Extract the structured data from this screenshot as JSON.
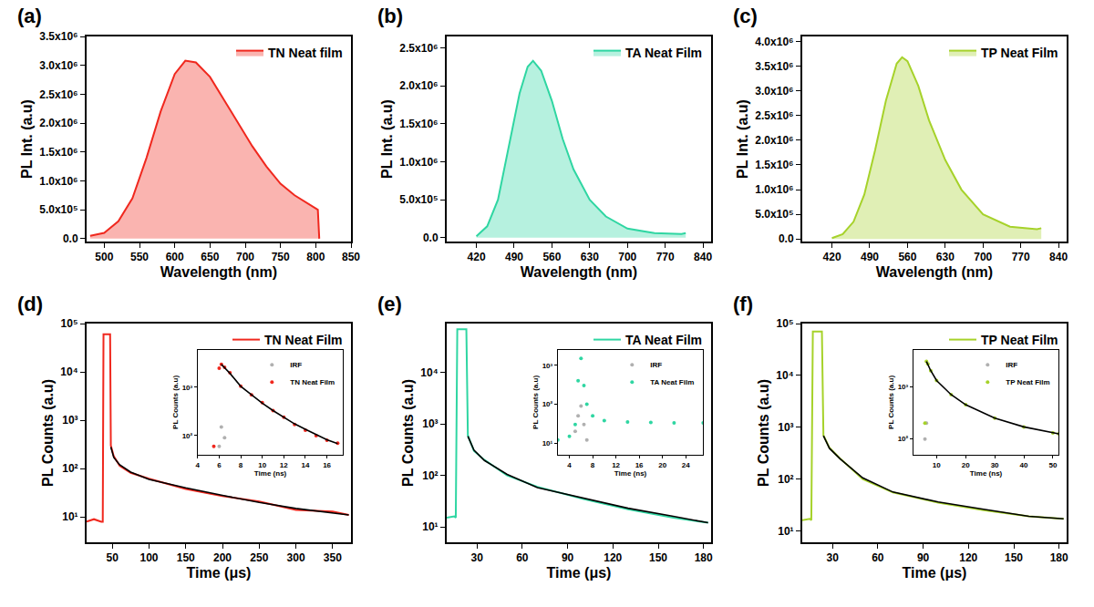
{
  "chart_data": [
    {
      "type": "area",
      "title": "(a)",
      "xlabel": "Wavelength (nm)",
      "ylabel": "PL Int. (a.u)",
      "x": [
        480,
        500,
        520,
        540,
        560,
        580,
        600,
        615,
        630,
        650,
        670,
        690,
        710,
        730,
        750,
        770,
        790,
        803,
        805
      ],
      "series": [
        {
          "name": "TN Neat film",
          "color": "#f0281e",
          "values": [
            50000,
            100000,
            300000,
            700000,
            1400000,
            2200000,
            2850000,
            3080000,
            3050000,
            2800000,
            2400000,
            2000000,
            1600000,
            1250000,
            950000,
            750000,
            600000,
            500000,
            0
          ]
        }
      ],
      "xlim": [
        475,
        850
      ],
      "xticks": [
        500,
        550,
        600,
        650,
        700,
        750,
        800,
        850
      ],
      "ylim": [
        -50000,
        3500000
      ],
      "yticks": [
        {
          "value": 0,
          "label": "0.0"
        },
        {
          "value": 500000,
          "label": "5.0x10⁵"
        },
        {
          "value": 1000000,
          "label": "1.0x10⁶"
        },
        {
          "value": 1500000,
          "label": "1.5x10⁶"
        },
        {
          "value": 2000000,
          "label": "2.0x10⁶"
        },
        {
          "value": 2500000,
          "label": "2.5x10⁶"
        },
        {
          "value": 3000000,
          "label": "3.0x10⁶"
        },
        {
          "value": 3500000,
          "label": "3.5x10⁶"
        }
      ],
      "grid": false,
      "legend": "top right"
    },
    {
      "type": "area",
      "title": "(b)",
      "xlabel": "Wavelength (nm)",
      "ylabel": "PL Int. (a.u)",
      "x": [
        420,
        440,
        460,
        480,
        500,
        515,
        525,
        540,
        560,
        580,
        600,
        630,
        660,
        700,
        750,
        800,
        808
      ],
      "series": [
        {
          "name": "TA Neat Film",
          "color": "#2fd6a2",
          "values": [
            20000,
            150000,
            500000,
            1200000,
            1900000,
            2250000,
            2330000,
            2200000,
            1800000,
            1300000,
            900000,
            500000,
            280000,
            120000,
            60000,
            50000,
            60000
          ]
        }
      ],
      "xlim": [
        365,
        855
      ],
      "xticks": [
        420,
        490,
        560,
        630,
        700,
        770,
        840
      ],
      "ylim": [
        -50000,
        2650000
      ],
      "yticks": [
        {
          "value": 0,
          "label": "0.0"
        },
        {
          "value": 500000,
          "label": "5.0x10⁵"
        },
        {
          "value": 1000000,
          "label": "1.0x10⁶"
        },
        {
          "value": 1500000,
          "label": "1.5x10⁶"
        },
        {
          "value": 2000000,
          "label": "2.0x10⁶"
        },
        {
          "value": 2500000,
          "label": "2.5x10⁶"
        }
      ],
      "grid": false,
      "legend": "top right"
    },
    {
      "type": "area",
      "title": "(c)",
      "xlabel": "Wavelength (nm)",
      "ylabel": "PL Int. (a.u)",
      "x": [
        420,
        440,
        460,
        480,
        500,
        520,
        540,
        550,
        560,
        580,
        600,
        630,
        660,
        700,
        750,
        800,
        808
      ],
      "series": [
        {
          "name": "TP Neat Film",
          "color": "#a6d22a",
          "values": [
            20000,
            100000,
            350000,
            900000,
            1800000,
            2800000,
            3550000,
            3680000,
            3600000,
            3100000,
            2400000,
            1600000,
            1000000,
            500000,
            250000,
            200000,
            220000
          ]
        }
      ],
      "xlim": [
        365,
        855
      ],
      "xticks": [
        420,
        490,
        560,
        630,
        700,
        770,
        840
      ],
      "ylim": [
        -50000,
        4100000
      ],
      "yticks": [
        {
          "value": 0,
          "label": "0.0"
        },
        {
          "value": 500000,
          "label": "5.0x10⁵"
        },
        {
          "value": 1000000,
          "label": "1.0x10⁶"
        },
        {
          "value": 1500000,
          "label": "1.5x10⁶"
        },
        {
          "value": 2000000,
          "label": "2.0x10⁶"
        },
        {
          "value": 2500000,
          "label": "2.5x10⁶"
        },
        {
          "value": 3000000,
          "label": "3.0x10⁶"
        },
        {
          "value": 3500000,
          "label": "3.5x10⁶"
        },
        {
          "value": 4000000,
          "label": "4.0x10⁶"
        }
      ],
      "grid": false,
      "legend": "top right"
    },
    {
      "type": "line",
      "title": "(d)",
      "xlabel": "Time (μs)",
      "ylabel": "PL Counts (a.u)",
      "log": "y",
      "x": [
        15,
        25,
        35,
        37,
        38,
        45,
        47,
        48,
        52,
        60,
        75,
        100,
        150,
        200,
        250,
        300,
        350,
        372
      ],
      "series": [
        {
          "name": "TN Neat Film",
          "color": "#f0281e",
          "values": [
            8,
            9,
            8,
            8,
            60000,
            60000,
            60000,
            300,
            180,
            115,
            82,
            62,
            38,
            27,
            21,
            14,
            13,
            11
          ]
        },
        {
          "color": "#000000",
          "values": [
            null,
            null,
            null,
            null,
            null,
            null,
            null,
            280,
            170,
            120,
            85,
            60,
            40,
            28,
            20,
            15,
            12,
            11
          ]
        }
      ],
      "xlim": [
        15,
        375
      ],
      "xticks": [
        50,
        100,
        150,
        200,
        250,
        300,
        350
      ],
      "ylim": [
        3,
        100000
      ],
      "yticks": [
        {
          "value": 10,
          "label": "10¹"
        },
        {
          "value": 100,
          "label": "10²"
        },
        {
          "value": 1000,
          "label": "10³"
        },
        {
          "value": 10000,
          "label": "10⁴"
        },
        {
          "value": 100000,
          "label": "10⁵"
        }
      ],
      "grid": false,
      "legend": "top right"
    },
    {
      "type": "line",
      "title": "(e)",
      "xlabel": "Time (μs)",
      "ylabel": "PL Counts (a.u)",
      "log": "y",
      "x": [
        10,
        15,
        16,
        17,
        23,
        24,
        28,
        35,
        50,
        70,
        100,
        130,
        160,
        183
      ],
      "series": [
        {
          "name": "TA Neat Film",
          "color": "#2fd6a2",
          "values": [
            15,
            16,
            15,
            70000,
            70000,
            600,
            300,
            200,
            100,
            60,
            35,
            22,
            15,
            12
          ]
        },
        {
          "color": "#000000",
          "values": [
            null,
            null,
            null,
            null,
            null,
            580,
            310,
            195,
            105,
            58,
            36,
            23,
            16,
            12
          ]
        }
      ],
      "xlim": [
        10,
        185
      ],
      "xticks": [
        30,
        60,
        90,
        120,
        150,
        180
      ],
      "ylim": [
        5,
        90000
      ],
      "yticks": [
        {
          "value": 10,
          "label": "10¹"
        },
        {
          "value": 100,
          "label": "10²"
        },
        {
          "value": 1000,
          "label": "10³"
        },
        {
          "value": 10000,
          "label": "10⁴"
        }
      ],
      "grid": false,
      "legend": "top right"
    },
    {
      "type": "line",
      "title": "(f)",
      "xlabel": "Time (μs)",
      "ylabel": "PL Counts (a.u)",
      "log": "y",
      "x": [
        10,
        15,
        16,
        17,
        23,
        24,
        28,
        35,
        50,
        70,
        100,
        130,
        160,
        183
      ],
      "series": [
        {
          "name": "TP Neat Film",
          "color": "#a6d22a",
          "values": [
            16,
            17,
            16,
            70000,
            70000,
            700,
            400,
            250,
            100,
            55,
            35,
            25,
            19,
            17
          ]
        },
        {
          "color": "#000000",
          "values": [
            null,
            null,
            null,
            null,
            null,
            680,
            390,
            245,
            105,
            56,
            36,
            26,
            19,
            17
          ]
        }
      ],
      "xlim": [
        10,
        185
      ],
      "xticks": [
        30,
        60,
        90,
        120,
        150,
        180
      ],
      "ylim": [
        6,
        100000
      ],
      "yticks": [
        {
          "value": 10,
          "label": "10¹"
        },
        {
          "value": 100,
          "label": "10²"
        },
        {
          "value": 1000,
          "label": "10³"
        },
        {
          "value": 10000,
          "label": "10⁴"
        },
        {
          "value": 100000,
          "label": "10⁵"
        }
      ],
      "grid": false,
      "legend": "top right"
    },
    {
      "type": "scatter",
      "xlabel": "Time (ns)",
      "ylabel": "PL Counts (a.u)",
      "log": "y",
      "x": [
        4,
        5,
        5.5,
        6,
        6.2,
        6.5,
        7,
        8,
        9,
        10,
        11,
        12,
        13,
        14,
        15,
        16,
        17
      ],
      "series": [
        {
          "name": "IRF",
          "color": "#b0b0b0",
          "marker": "circle",
          "values": [
            null,
            null,
            null,
            60,
            150,
            90,
            null,
            null,
            null,
            null,
            null,
            null,
            null,
            null,
            null,
            null,
            null
          ]
        },
        {
          "name": "TN Neat Film",
          "color": "#f0281e",
          "marker": "circle",
          "values": [
            null,
            null,
            60,
            2500,
            3000,
            2600,
            2000,
            1050,
            700,
            480,
            330,
            240,
            170,
            130,
            100,
            80,
            70
          ]
        },
        {
          "type": "line",
          "color": "#000000",
          "values": [
            null,
            null,
            null,
            null,
            3000,
            2550,
            1950,
            1050,
            690,
            470,
            330,
            240,
            175,
            135,
            105,
            82,
            68
          ]
        }
      ],
      "xlim": [
        4,
        17.5
      ],
      "xticks": [
        4,
        6,
        8,
        10,
        12,
        14,
        16
      ],
      "ylim": [
        40,
        6000
      ],
      "yticks": [
        {
          "value": 100,
          "label": "10²"
        },
        {
          "value": 1000,
          "label": "10³"
        }
      ],
      "grid": false,
      "legend": "top right"
    },
    {
      "type": "scatter",
      "xlabel": "Time (ns)",
      "ylabel": "PL Counts (a.u)",
      "log": "y",
      "x": [
        2,
        4,
        5,
        5.5,
        6,
        6.5,
        7,
        8,
        10,
        14,
        18,
        22,
        27
      ],
      "series": [
        {
          "name": "IRF",
          "color": "#b0b0b0",
          "marker": "circle",
          "values": [
            null,
            null,
            20,
            50,
            90,
            30,
            12,
            null,
            null,
            null,
            null,
            null,
            null
          ]
        },
        {
          "name": "TA Neat Film",
          "color": "#2fd6a2",
          "marker": "circle",
          "values": [
            12,
            15,
            30,
            400,
            1500,
            300,
            100,
            50,
            38,
            35,
            34,
            33,
            33
          ]
        }
      ],
      "xlim": [
        2,
        27
      ],
      "xticks": [
        4,
        8,
        12,
        16,
        20,
        24
      ],
      "ylim": [
        5,
        2500
      ],
      "yticks": [
        {
          "value": 10,
          "label": "10¹"
        },
        {
          "value": 100,
          "label": "10²"
        },
        {
          "value": 1000,
          "label": "10³"
        }
      ],
      "grid": false,
      "legend": "top right"
    },
    {
      "type": "scatter",
      "xlabel": "Time (ns)",
      "ylabel": "PL Counts (a.u)",
      "log": "y",
      "x": [
        3,
        5,
        6,
        6.5,
        7,
        8,
        10,
        15,
        20,
        30,
        40,
        50,
        52
      ],
      "series": [
        {
          "name": "IRF",
          "color": "#b0b0b0",
          "marker": "circle",
          "values": [
            null,
            null,
            100,
            200,
            null,
            null,
            null,
            null,
            null,
            null,
            null,
            null,
            null
          ]
        },
        {
          "name": "TP Neat Film",
          "color": "#a6d22a",
          "marker": "circle",
          "values": [
            null,
            null,
            200,
            3000,
            2700,
            2000,
            1300,
            700,
            450,
            250,
            170,
            130,
            125
          ]
        },
        {
          "type": "line",
          "color": "#000000",
          "values": [
            null,
            null,
            null,
            3000,
            2650,
            2000,
            1300,
            700,
            450,
            250,
            170,
            130,
            125
          ]
        }
      ],
      "xlim": [
        2,
        52
      ],
      "xticks": [
        10,
        20,
        30,
        40,
        50
      ],
      "ylim": [
        50,
        5000
      ],
      "yticks": [
        {
          "value": 100,
          "label": "10²"
        },
        {
          "value": 1000,
          "label": "10³"
        }
      ],
      "grid": false,
      "legend": "top right"
    }
  ]
}
